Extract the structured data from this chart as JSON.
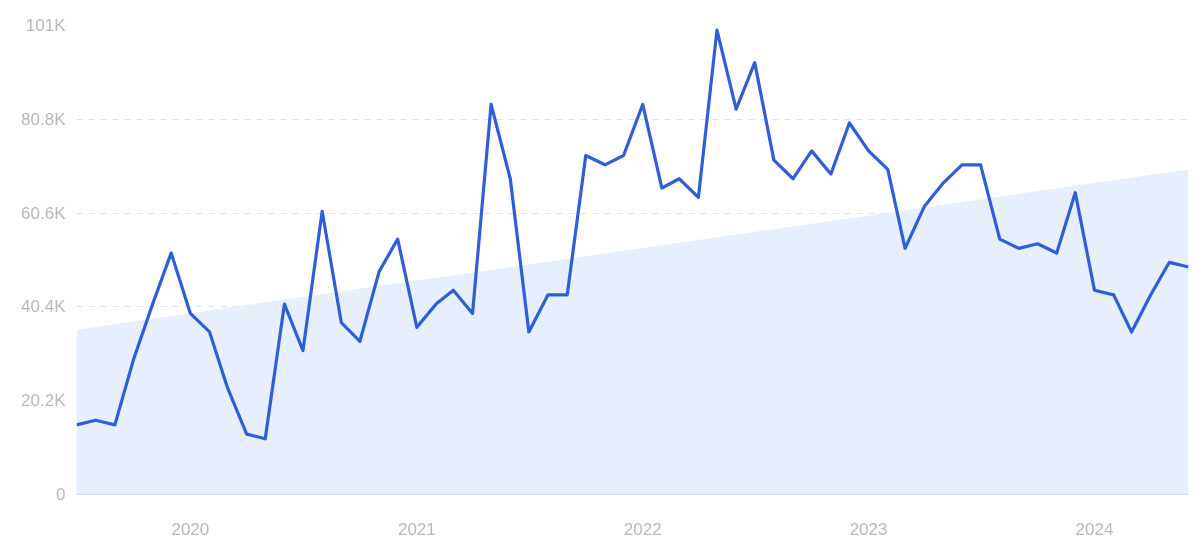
{
  "chart_data": {
    "type": "line",
    "x": [
      "2019-07",
      "2019-08",
      "2019-09",
      "2019-10",
      "2019-11",
      "2019-12",
      "2020-01",
      "2020-02",
      "2020-03",
      "2020-04",
      "2020-05",
      "2020-06",
      "2020-07",
      "2020-08",
      "2020-09",
      "2020-10",
      "2020-11",
      "2020-12",
      "2021-01",
      "2021-02",
      "2021-03",
      "2021-04",
      "2021-05",
      "2021-06",
      "2021-07",
      "2021-08",
      "2021-09",
      "2021-10",
      "2021-11",
      "2021-12",
      "2022-01",
      "2022-02",
      "2022-03",
      "2022-04",
      "2022-05",
      "2022-06",
      "2022-07",
      "2022-08",
      "2022-09",
      "2022-10",
      "2022-11",
      "2022-12",
      "2023-01",
      "2023-02",
      "2023-03",
      "2023-04",
      "2023-05",
      "2023-06",
      "2023-07",
      "2023-08",
      "2023-09",
      "2023-10",
      "2023-11",
      "2023-12",
      "2024-01",
      "2024-02",
      "2024-03",
      "2024-04",
      "2024-05",
      "2024-06"
    ],
    "series": [
      {
        "type": "area",
        "color": "#e3edfb",
        "x": [
          "2019-07",
          "2024-06"
        ],
        "values": [
          35500,
          70000
        ]
      },
      {
        "color": "#2f5fd6",
        "values": [
          15000,
          16000,
          15000,
          29000,
          41000,
          52000,
          39000,
          35000,
          23000,
          13000,
          12000,
          41000,
          31000,
          61000,
          37000,
          33000,
          48000,
          55000,
          36000,
          41000,
          44000,
          39000,
          84000,
          68000,
          35000,
          43000,
          43000,
          73000,
          71000,
          73000,
          84000,
          66000,
          68000,
          64000,
          100000,
          83000,
          93000,
          72000,
          68000,
          74000,
          69000,
          80000,
          74000,
          70000,
          53000,
          62000,
          67000,
          71000,
          71000,
          55000,
          53000,
          54000,
          52000,
          65000,
          44000,
          43000,
          35000,
          43000,
          50000,
          49000
        ]
      }
    ],
    "xlim": [
      "2019-07",
      "2024-06"
    ],
    "xticks": [
      {
        "value": "2020-01",
        "label": "2020"
      },
      {
        "value": "2021-01",
        "label": "2021"
      },
      {
        "value": "2022-01",
        "label": "2022"
      },
      {
        "value": "2023-01",
        "label": "2023"
      },
      {
        "value": "2024-01",
        "label": "2024"
      }
    ],
    "ylim": [
      0,
      101000
    ],
    "yticks": [
      0,
      {
        "value": 20200,
        "label": "20.2K"
      },
      {
        "value": 40400,
        "label": "40.4K"
      },
      {
        "value": 60600,
        "label": "60.6K"
      },
      {
        "value": 80800,
        "label": "80.8K"
      },
      {
        "value": 101000,
        "label": "101K"
      }
    ],
    "grid": "y",
    "line_style": "solid"
  }
}
